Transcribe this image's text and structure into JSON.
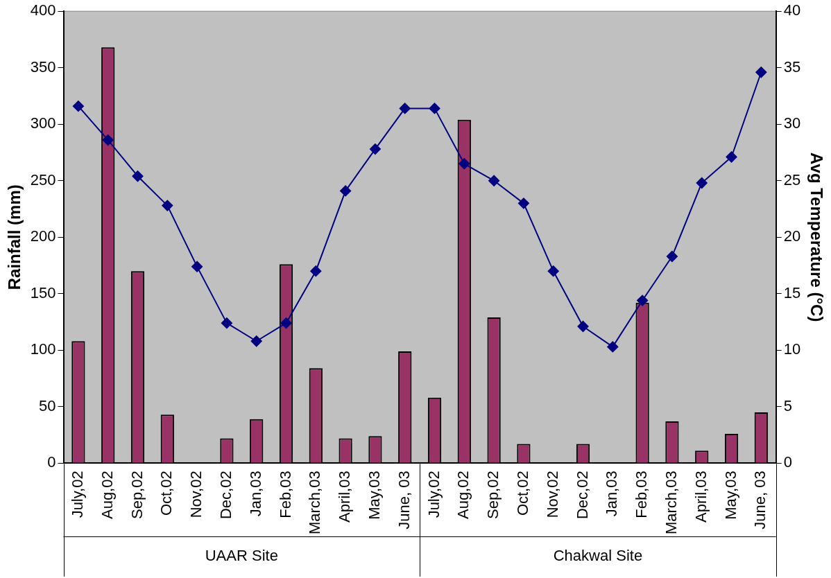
{
  "chart_data": {
    "type": "bar",
    "categories": [
      "July,02",
      "Aug,02",
      "Sep,02",
      "Oct,02",
      "Nov,02",
      "Dec,02",
      "Jan,03",
      "Feb,03",
      "March,03",
      "April,03",
      "May,03",
      "June, 03",
      "July,02",
      "Aug,02",
      "Sep,02",
      "Oct,02",
      "Nov,02",
      "Dec,02",
      "Jan,03",
      "Feb,03",
      "March,03",
      "April,03",
      "May,03",
      "June, 03"
    ],
    "series": [
      {
        "color": "#993366",
        "values": [
          108,
          368,
          170,
          43,
          0,
          22,
          39,
          176,
          84,
          22,
          24,
          99,
          58,
          304,
          129,
          17,
          0,
          17,
          0,
          142,
          37,
          11,
          26,
          45
        ]
      },
      {
        "type": "line",
        "axis": "y2",
        "color": "#000080",
        "marker": "diamond",
        "values": [
          31.6,
          28.6,
          25.4,
          22.8,
          17.4,
          12.4,
          10.8,
          12.4,
          17.0,
          24.1,
          27.8,
          31.4,
          31.4,
          26.5,
          25.0,
          23.0,
          17.0,
          12.1,
          10.3,
          14.4,
          18.3,
          24.8,
          27.1,
          34.6
        ]
      }
    ],
    "ylabel": "Rainfall (mm)",
    "y2label": "Avg Temperature (°C)",
    "ylim": [
      0,
      400
    ],
    "yticks": [
      0,
      50,
      100,
      150,
      200,
      250,
      300,
      350,
      400
    ],
    "y2lim": [
      0,
      40
    ],
    "y2ticks": [
      0,
      5,
      10,
      15,
      20,
      25,
      30,
      35,
      40
    ],
    "annotations": [
      "UAAR Site",
      "Chakwal Site"
    ],
    "grid": false,
    "legend": false
  }
}
